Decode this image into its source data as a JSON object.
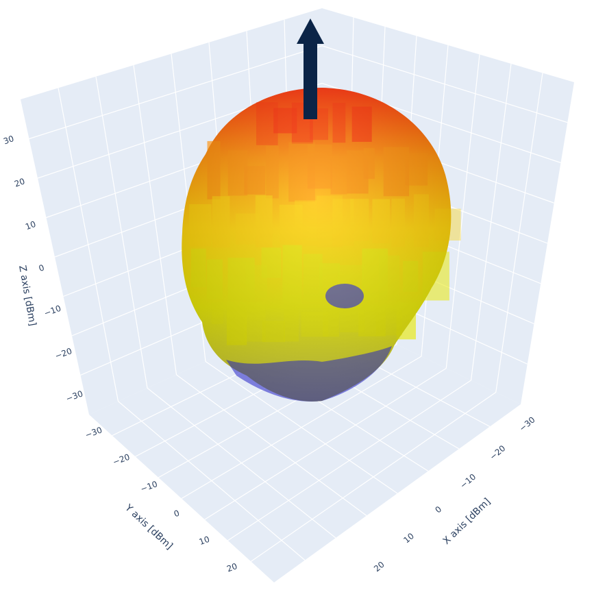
{
  "chart_data": {
    "type": "surface3d",
    "title": "",
    "xlabel": "X axis [dBm]",
    "ylabel": "Y axis [dBm]",
    "zlabel": "Z axis [dBm]",
    "x_ticks": [
      "−30",
      "−20",
      "−10",
      "0",
      "10",
      "20"
    ],
    "y_ticks": [
      "−30",
      "−20",
      "−10",
      "0",
      "10",
      "20"
    ],
    "z_ticks": [
      "−30",
      "−20",
      "−10",
      "0",
      "10",
      "20",
      "30"
    ],
    "x_range": [
      -35,
      35
    ],
    "y_range": [
      -35,
      35
    ],
    "z_range": [
      -35,
      35
    ],
    "grid": true,
    "colorscale": [
      "#3333cc",
      "#e8e800",
      "#ffd200",
      "#ff8c00",
      "#ff2a00"
    ],
    "shape": "roughly spherical radiation pattern, top red, middle orange/yellow, bottom yellow with blue lobes",
    "arrow_direction": "+z",
    "arrow_color": "#0b2447",
    "background_color": "#e5ecf6"
  }
}
